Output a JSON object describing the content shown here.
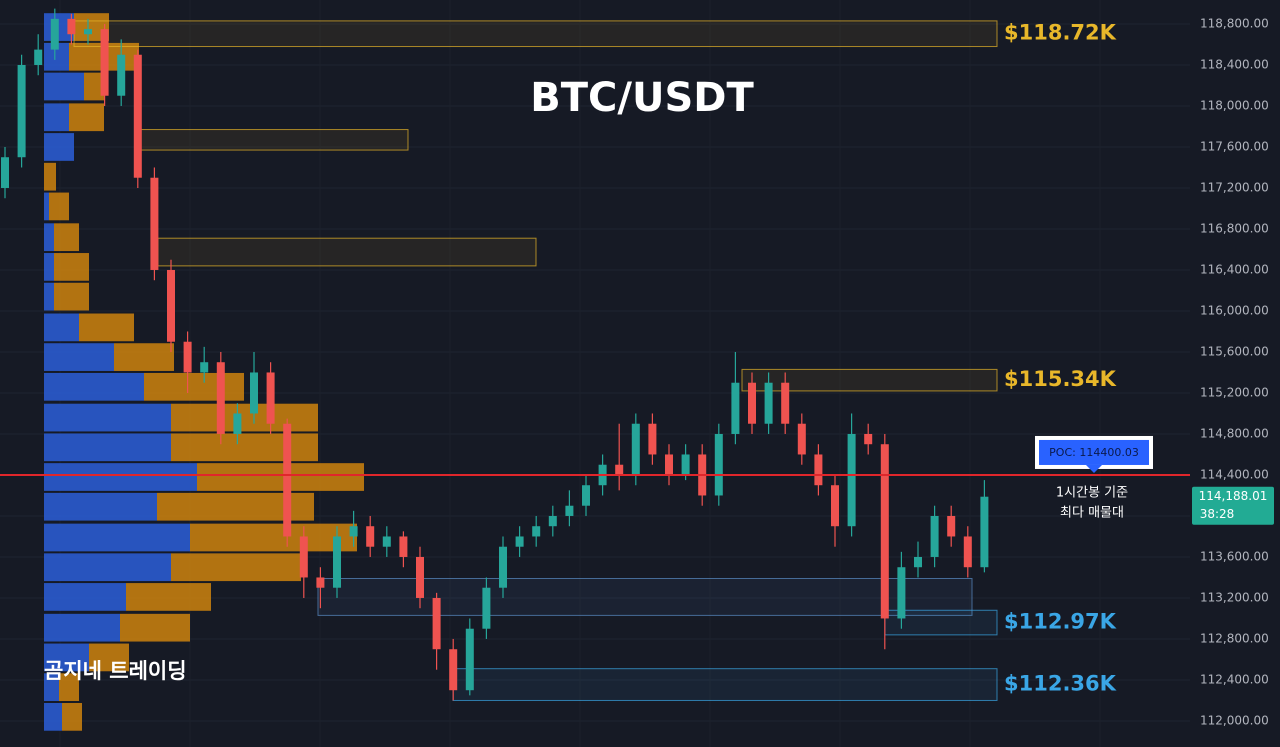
{
  "chart_data": {
    "type": "candlestick",
    "title": "BTC/USDT",
    "watermark": "곰지네 트레이딩",
    "categories": [
      null,
      null,
      null,
      null,
      null,
      null,
      null,
      null,
      null,
      null,
      null,
      null,
      null,
      null,
      null,
      null,
      null,
      null,
      null,
      null,
      null,
      null,
      null,
      null,
      null,
      null,
      null,
      null,
      null,
      null,
      null,
      null,
      null,
      null,
      null,
      null,
      null,
      null,
      null,
      null,
      null,
      null,
      null,
      null,
      null,
      null,
      null,
      null,
      null,
      null,
      null,
      null,
      null,
      null,
      null,
      null,
      null,
      null,
      null,
      null
    ],
    "open": [
      117200,
      117500,
      118400,
      118550,
      118850,
      118700,
      118750,
      118100,
      118500,
      117300,
      116400,
      115700,
      115400,
      115500,
      114800,
      115000,
      115400,
      114900,
      113800,
      113400,
      113300,
      113800,
      113900,
      113700,
      113800,
      113600,
      113200,
      112700,
      112300,
      112900,
      113300,
      113700,
      113800,
      113900,
      114000,
      114100,
      114300,
      114500,
      114400,
      114900,
      114600,
      114400,
      114600,
      114200,
      114800,
      115300,
      114900,
      115300,
      114900,
      114600,
      114300,
      113900,
      114800,
      114700,
      113000,
      113500,
      113600,
      114000,
      113800,
      113500
    ],
    "high": [
      117600,
      118500,
      118700,
      118950,
      118900,
      118850,
      118800,
      118650,
      118550,
      117400,
      116500,
      115800,
      115650,
      115600,
      115100,
      115600,
      115500,
      114950,
      113900,
      113500,
      113900,
      114050,
      114000,
      113900,
      113850,
      113700,
      113250,
      112800,
      113000,
      113400,
      113800,
      113900,
      114000,
      114100,
      114250,
      114400,
      114600,
      114900,
      115000,
      115000,
      114700,
      114700,
      114700,
      114900,
      115600,
      115400,
      115400,
      115400,
      115000,
      114700,
      114400,
      115000,
      114900,
      114800,
      113650,
      113750,
      114100,
      114100,
      113900,
      114350
    ],
    "low": [
      117100,
      117400,
      118300,
      118450,
      118600,
      118600,
      118000,
      118000,
      117200,
      116300,
      115600,
      115200,
      115300,
      114700,
      114700,
      114900,
      114800,
      113700,
      113200,
      113100,
      113200,
      113700,
      113600,
      113600,
      113500,
      113100,
      112500,
      112200,
      112250,
      112800,
      113200,
      113600,
      113700,
      113800,
      113900,
      114000,
      114200,
      114250,
      114300,
      114500,
      114300,
      114350,
      114100,
      114100,
      114700,
      114800,
      114800,
      114800,
      114500,
      114200,
      113700,
      113800,
      114600,
      112700,
      112900,
      113400,
      113500,
      113700,
      113400,
      113450
    ],
    "close": [
      117500,
      118400,
      118550,
      118850,
      118700,
      118750,
      118100,
      118500,
      117300,
      116400,
      115700,
      115400,
      115500,
      114800,
      115000,
      115400,
      114900,
      113800,
      113400,
      113300,
      113800,
      113900,
      113700,
      113800,
      113600,
      113200,
      112700,
      112300,
      112900,
      113300,
      113700,
      113800,
      113900,
      114000,
      114100,
      114300,
      114500,
      114400,
      114900,
      114600,
      114400,
      114600,
      114200,
      114800,
      115300,
      114900,
      115300,
      114900,
      114600,
      114300,
      113900,
      114800,
      114700,
      113000,
      113500,
      113600,
      114000,
      113800,
      113500,
      114188.01
    ],
    "up_color": "#26a69a",
    "down_color": "#ef5350",
    "ylim": [
      111746,
      119034
    ],
    "yticks": [
      {
        "value": 112000,
        "label": "112,000.00"
      },
      {
        "value": 112400,
        "label": "112,400.00"
      },
      {
        "value": 112800,
        "label": "112,800.00"
      },
      {
        "value": 113200,
        "label": "113,200.00"
      },
      {
        "value": 113600,
        "label": "113,600.00"
      },
      {
        "value": 114000,
        "label": "114,000.00"
      },
      {
        "value": 114400,
        "label": "114,400.00"
      },
      {
        "value": 114800,
        "label": "114,800.00"
      },
      {
        "value": 115200,
        "label": "115,200.00"
      },
      {
        "value": 115600,
        "label": "115,600.00"
      },
      {
        "value": 116000,
        "label": "116,000.00"
      },
      {
        "value": 116400,
        "label": "116,400.00"
      },
      {
        "value": 116800,
        "label": "116,800.00"
      },
      {
        "value": 117200,
        "label": "117,200.00"
      },
      {
        "value": 117600,
        "label": "117,600.00"
      },
      {
        "value": 118000,
        "label": "118,000.00"
      },
      {
        "value": 118400,
        "label": "118,400.00"
      },
      {
        "value": 118800,
        "label": "118,800.00"
      }
    ],
    "grid": true,
    "volume_profile": {
      "prices": [
        118770,
        118480,
        118190,
        117890,
        117600,
        117310,
        117020,
        116720,
        116430,
        116140,
        115840,
        115550,
        115260,
        114960,
        114670,
        114380,
        114090,
        113790,
        113500,
        113210,
        112910,
        112620,
        112330,
        112040
      ],
      "buy": [
        30,
        25,
        40,
        25,
        30,
        0,
        5,
        10,
        10,
        10,
        35,
        70,
        100,
        127,
        127,
        153,
        113,
        146,
        127,
        82,
        76,
        45,
        15,
        18
      ],
      "sell": [
        35,
        70,
        20,
        35,
        0,
        12,
        20,
        25,
        35,
        35,
        55,
        60,
        100,
        147,
        147,
        167,
        157,
        167,
        130,
        85,
        70,
        40,
        20,
        20
      ],
      "buy_color": "#2b5fd9",
      "sell_color": "#d98a0c"
    },
    "zones": [
      {
        "label": "$118.72K",
        "low": 118580,
        "high": 118830,
        "color": "#e8b72a"
      },
      {
        "low": 117570,
        "high": 117770,
        "color": "#e8b72a"
      },
      {
        "low": 116440,
        "high": 116710,
        "color": "#e8b72a"
      },
      {
        "label": "$115.34K",
        "low": 115220,
        "high": 115430,
        "color": "#e8b72a"
      },
      {
        "low": 113030,
        "high": 113390,
        "color": "#5b8fc7"
      },
      {
        "label": "$112.97K",
        "low": 112840,
        "high": 113080,
        "color": "#3aa6e6"
      },
      {
        "label": "$112.36K",
        "low": 112200,
        "high": 112510,
        "color": "#3aa6e6"
      }
    ],
    "poc": {
      "value": 114400.03,
      "label": "POC: 114400.03",
      "color": "#e0262b"
    },
    "notes": [
      "1시간봉 기준",
      "최다 매물대"
    ],
    "last_price": {
      "value": 114188.01,
      "label": "114,188.01",
      "timer": "38:28",
      "color": "#22ab94"
    }
  }
}
